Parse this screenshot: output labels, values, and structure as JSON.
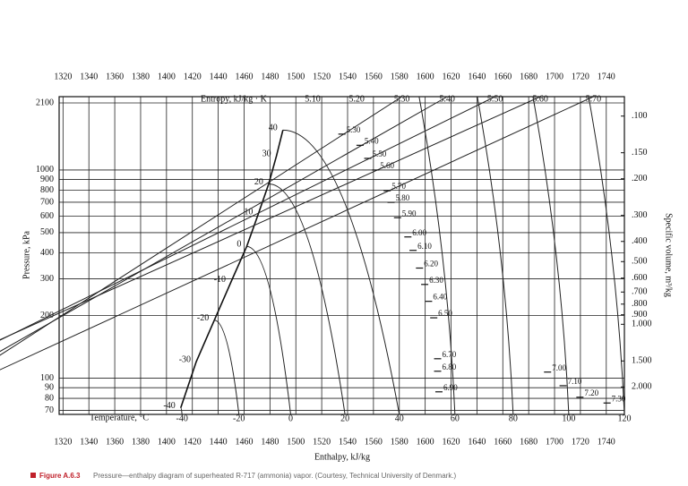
{
  "chart_data": {
    "type": "ph-diagram",
    "x_label": "Enthalpy, kJ/kg",
    "y_label": "Pressure, kPa",
    "y2_label": "Specific volume, m³/kg",
    "entropy_label": "Entropy, kJ/kg · K",
    "temperature_label": "Temperature, °C",
    "xlim": [
      1317,
      1754
    ],
    "xticks": [
      1320,
      1340,
      1360,
      1380,
      1400,
      1420,
      1440,
      1460,
      1480,
      1500,
      1520,
      1540,
      1560,
      1580,
      1600,
      1620,
      1640,
      1660,
      1680,
      1700,
      1720,
      1740
    ],
    "ylim": [
      67,
      2250
    ],
    "log_y": true,
    "grid": true,
    "yticks": [
      70,
      80,
      90,
      100,
      200,
      300,
      400,
      500,
      600,
      700,
      800,
      900,
      1000,
      2100
    ],
    "volume_labels": [
      {
        "value": 0.1,
        "label": ".100"
      },
      {
        "value": 0.15,
        "label": ".150"
      },
      {
        "value": 0.2,
        "label": ".200"
      },
      {
        "value": 0.3,
        "label": ".300"
      },
      {
        "value": 0.4,
        "label": ".400"
      },
      {
        "value": 0.5,
        "label": ".500"
      },
      {
        "value": 0.6,
        "label": ".600"
      },
      {
        "value": 0.7,
        "label": ".700"
      },
      {
        "value": 0.8,
        "label": ".800"
      },
      {
        "value": 0.9,
        "label": ".900"
      },
      {
        "value": 1.0,
        "label": "1.000"
      },
      {
        "value": 1.5,
        "label": "1.500"
      },
      {
        "value": 2.0,
        "label": "2.000"
      }
    ],
    "entropy_top": {
      "values": [
        {
          "value": 5.1,
          "label": "5.10"
        },
        {
          "value": 5.2,
          "label": "5.20"
        },
        {
          "value": 5.3,
          "label": "5.30"
        },
        {
          "value": 5.4,
          "label": "5.40"
        },
        {
          "value": 5.5,
          "label": "5.50"
        },
        {
          "value": 5.6,
          "label": "5.60"
        },
        {
          "value": 5.7,
          "label": "5.70"
        }
      ],
      "h": [
        1513,
        1547,
        1582,
        1617,
        1654,
        1689,
        1730
      ]
    },
    "entropy_marks": {
      "values": [
        {
          "value": 5.3,
          "label": "5.30"
        },
        {
          "value": 5.4,
          "label": "5.40"
        },
        {
          "value": 5.5,
          "label": "5.50"
        },
        {
          "value": 5.6,
          "label": "5.60"
        },
        {
          "value": 5.7,
          "label": "5.70"
        },
        {
          "value": 5.8,
          "label": "5.80"
        },
        {
          "value": 5.9,
          "label": "5.90"
        },
        {
          "value": 6.0,
          "label": "6.00"
        },
        {
          "value": 6.1,
          "label": "6.10"
        },
        {
          "value": 6.2,
          "label": "6.20"
        },
        {
          "value": 6.3,
          "label": "6.30"
        },
        {
          "value": 6.4,
          "label": "6.40"
        },
        {
          "value": 6.5,
          "label": "6.50"
        },
        {
          "value": 6.7,
          "label": "6.70"
        },
        {
          "value": 6.8,
          "label": "6.80"
        },
        {
          "value": 6.9,
          "label": "6.90"
        },
        {
          "value": 7.0,
          "label": "7.00"
        },
        {
          "value": 7.1,
          "label": "7.10"
        },
        {
          "value": 7.2,
          "label": "7.20"
        },
        {
          "value": 7.3,
          "label": "7.30"
        }
      ],
      "h": [
        1537,
        1551,
        1557,
        1563,
        1572,
        1575,
        1580,
        1588,
        1592,
        1597,
        1601,
        1604,
        1608,
        1611,
        1611,
        1612,
        1696,
        1708,
        1721,
        1742
      ],
      "p": [
        1487,
        1314,
        1137,
        1000,
        795,
        699,
        590,
        477,
        411,
        338,
        282,
        234,
        195,
        124,
        108,
        86,
        107,
        92,
        81,
        76
      ]
    },
    "saturation": {
      "temperatures": [
        40,
        30,
        20,
        10,
        0,
        -10,
        -20,
        -30,
        -40
      ],
      "h": [
        1490,
        1485,
        1479,
        1471,
        1462,
        1450,
        1437,
        1423,
        1411
      ],
      "p": [
        1555,
        1167,
        857,
        615,
        429,
        291,
        190,
        120,
        72
      ]
    },
    "temperature_bottom": {
      "values": [
        -40,
        -20,
        0,
        20,
        40,
        60,
        80,
        100,
        120
      ],
      "h": [
        1412,
        1456,
        1496,
        1538,
        1580,
        1623,
        1668,
        1711,
        1754
      ]
    },
    "caption_label": "Figure A.6.3",
    "caption": "Pressure—enthalpy diagram of superheated R-717 (ammonia) vapor. (Courtesy, Technical University of Denmark.)"
  }
}
